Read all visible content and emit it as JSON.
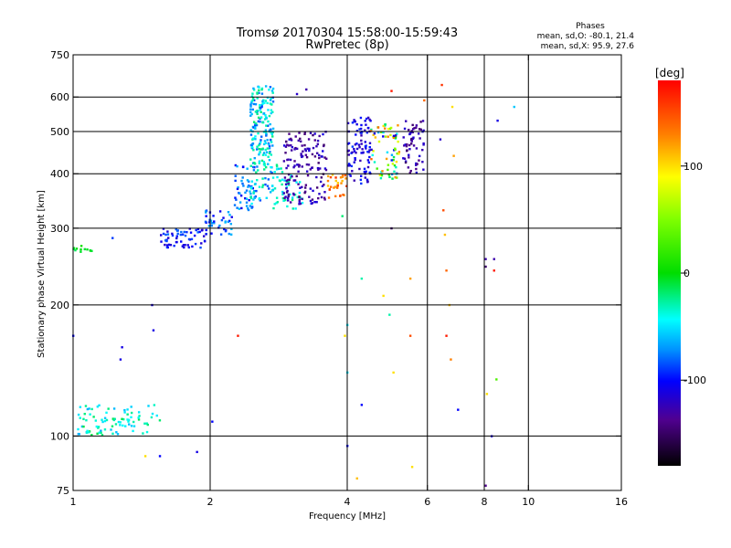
{
  "chart_data": {
    "type": "scatter",
    "title": "Tromsø 20170304 15:58:00-15:59:43",
    "subtitle": "RwPretec (8p)",
    "stats": {
      "heading": "Phases",
      "o_line": "mean, sd,O: -80.1, 21.4",
      "x_line": "mean, sd,X:  95.9, 27.6"
    },
    "xlabel": "Frequency [MHz]",
    "ylabel": "Stationary phase Virtual Height [km]",
    "x_scale": "log",
    "y_scale": "log",
    "xlim": [
      1,
      16
    ],
    "ylim": [
      75,
      750
    ],
    "x_ticks": [
      1,
      2,
      4,
      6,
      8,
      10,
      16
    ],
    "y_ticks": [
      75,
      100,
      200,
      300,
      400,
      500,
      600,
      750
    ],
    "x_grid": [
      2,
      4,
      6,
      8,
      10
    ],
    "y_grid": [
      100,
      200,
      300,
      400,
      500,
      600
    ],
    "grid": true,
    "colorbar": {
      "label": "[deg]",
      "min": -180,
      "max": 180,
      "ticks": [
        100,
        0,
        -100
      ],
      "colormap": "rainbow"
    },
    "clusters": [
      {
        "f_range": [
          1.0,
          1.1
        ],
        "h_range": [
          265,
          275
        ],
        "phase": [
          -20,
          10
        ],
        "count": 12
      },
      {
        "f_range": [
          1.02,
          1.55
        ],
        "h_range": [
          100,
          118
        ],
        "phase": [
          -70,
          -10
        ],
        "count": 90
      },
      {
        "f_range": [
          1.55,
          1.95
        ],
        "h_range": [
          270,
          300
        ],
        "phase": [
          -120,
          -80
        ],
        "count": 60
      },
      {
        "f_range": [
          1.95,
          2.25
        ],
        "h_range": [
          290,
          330
        ],
        "phase": [
          -110,
          -60
        ],
        "count": 40
      },
      {
        "f_range": [
          2.25,
          2.5
        ],
        "h_range": [
          330,
          420
        ],
        "phase": [
          -110,
          -60
        ],
        "count": 45
      },
      {
        "f_range": [
          2.45,
          2.75
        ],
        "h_range": [
          340,
          640
        ],
        "phase": [
          -90,
          -20
        ],
        "count": 220
      },
      {
        "f_range": [
          2.7,
          3.2
        ],
        "h_range": [
          330,
          420
        ],
        "phase": [
          -60,
          -20
        ],
        "count": 50
      },
      {
        "f_range": [
          2.9,
          3.6
        ],
        "h_range": [
          340,
          500
        ],
        "phase": [
          -150,
          -110
        ],
        "count": 150
      },
      {
        "f_range": [
          3.6,
          4.0
        ],
        "h_range": [
          350,
          400
        ],
        "phase": [
          100,
          160
        ],
        "count": 30
      },
      {
        "f_range": [
          4.0,
          4.5
        ],
        "h_range": [
          380,
          540
        ],
        "phase": [
          -130,
          -90
        ],
        "count": 90
      },
      {
        "f_range": [
          4.5,
          5.2
        ],
        "h_range": [
          390,
          520
        ],
        "phase": [
          -140,
          140
        ],
        "count": 70
      },
      {
        "f_range": [
          5.3,
          5.9
        ],
        "h_range": [
          400,
          530
        ],
        "phase": [
          -150,
          -110
        ],
        "count": 60
      }
    ],
    "points": [
      {
        "f": 1.0,
        "h": 170,
        "phase": -100
      },
      {
        "f": 1.28,
        "h": 160,
        "phase": -110
      },
      {
        "f": 1.27,
        "h": 150,
        "phase": -110
      },
      {
        "f": 1.22,
        "h": 285,
        "phase": -90
      },
      {
        "f": 1.44,
        "h": 90,
        "phase": 100
      },
      {
        "f": 1.5,
        "h": 175,
        "phase": -110
      },
      {
        "f": 1.49,
        "h": 200,
        "phase": -110
      },
      {
        "f": 1.55,
        "h": 90,
        "phase": -100
      },
      {
        "f": 1.87,
        "h": 92,
        "phase": -110
      },
      {
        "f": 2.02,
        "h": 108,
        "phase": -100
      },
      {
        "f": 2.3,
        "h": 170,
        "phase": 170
      },
      {
        "f": 3.1,
        "h": 610,
        "phase": -120
      },
      {
        "f": 3.25,
        "h": 625,
        "phase": -130
      },
      {
        "f": 3.95,
        "h": 170,
        "phase": 100
      },
      {
        "f": 4.0,
        "h": 180,
        "phase": -50
      },
      {
        "f": 4.0,
        "h": 140,
        "phase": -50
      },
      {
        "f": 3.9,
        "h": 320,
        "phase": -20
      },
      {
        "f": 4.3,
        "h": 118,
        "phase": -100
      },
      {
        "f": 4.3,
        "h": 230,
        "phase": -30
      },
      {
        "f": 4.2,
        "h": 80,
        "phase": 110
      },
      {
        "f": 4.0,
        "h": 95,
        "phase": -100
      },
      {
        "f": 4.8,
        "h": 210,
        "phase": 100
      },
      {
        "f": 4.95,
        "h": 190,
        "phase": -30
      },
      {
        "f": 5.05,
        "h": 140,
        "phase": 100
      },
      {
        "f": 5.0,
        "h": 300,
        "phase": -150
      },
      {
        "f": 5.0,
        "h": 620,
        "phase": 170
      },
      {
        "f": 5.5,
        "h": 170,
        "phase": 150
      },
      {
        "f": 5.55,
        "h": 85,
        "phase": 100
      },
      {
        "f": 5.5,
        "h": 230,
        "phase": 120
      },
      {
        "f": 5.9,
        "h": 590,
        "phase": 140
      },
      {
        "f": 6.45,
        "h": 640,
        "phase": 160
      },
      {
        "f": 6.5,
        "h": 330,
        "phase": 150
      },
      {
        "f": 6.55,
        "h": 290,
        "phase": 110
      },
      {
        "f": 6.4,
        "h": 480,
        "phase": -120
      },
      {
        "f": 6.8,
        "h": 570,
        "phase": 100
      },
      {
        "f": 6.85,
        "h": 440,
        "phase": 120
      },
      {
        "f": 6.6,
        "h": 240,
        "phase": 140
      },
      {
        "f": 6.7,
        "h": 200,
        "phase": 110
      },
      {
        "f": 6.75,
        "h": 150,
        "phase": 130
      },
      {
        "f": 6.6,
        "h": 170,
        "phase": 170
      },
      {
        "f": 7.0,
        "h": 115,
        "phase": -100
      },
      {
        "f": 8.05,
        "h": 245,
        "phase": -150
      },
      {
        "f": 8.05,
        "h": 255,
        "phase": -130
      },
      {
        "f": 8.4,
        "h": 240,
        "phase": 170
      },
      {
        "f": 8.4,
        "h": 255,
        "phase": -130
      },
      {
        "f": 8.3,
        "h": 100,
        "phase": -110
      },
      {
        "f": 8.5,
        "h": 135,
        "phase": 30
      },
      {
        "f": 8.1,
        "h": 125,
        "phase": 100
      },
      {
        "f": 8.05,
        "h": 77,
        "phase": -140
      },
      {
        "f": 8.55,
        "h": 530,
        "phase": -110
      },
      {
        "f": 9.3,
        "h": 570,
        "phase": -60
      }
    ]
  }
}
